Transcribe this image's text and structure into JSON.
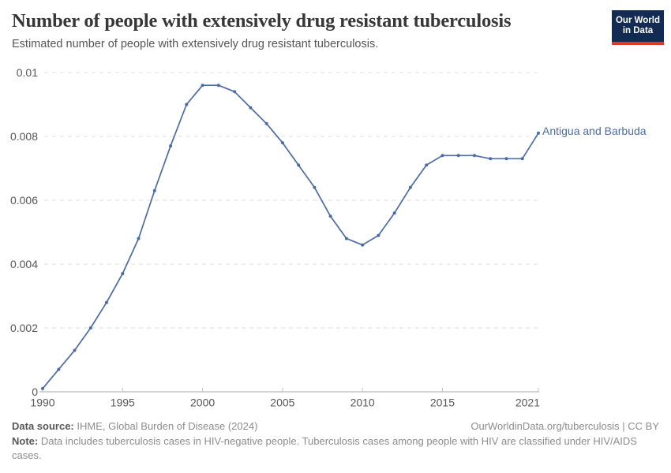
{
  "header": {
    "title": "Number of people with extensively drug resistant tuberculosis",
    "subtitle": "Estimated number of people with extensively drug resistant tuberculosis.",
    "logo": {
      "line1": "Our World",
      "line2": "in Data"
    }
  },
  "chart_data": {
    "type": "line",
    "title": "Number of people with extensively drug resistant tuberculosis",
    "xlabel": "",
    "ylabel": "",
    "xlim": [
      1990,
      2021
    ],
    "ylim": [
      0,
      0.01
    ],
    "grid": "horizontal dashed",
    "legend_position": "end-of-line label",
    "x": [
      1990,
      1991,
      1992,
      1993,
      1994,
      1995,
      1996,
      1997,
      1998,
      1999,
      2000,
      2001,
      2002,
      2003,
      2004,
      2005,
      2006,
      2007,
      2008,
      2009,
      2010,
      2011,
      2012,
      2013,
      2014,
      2015,
      2016,
      2017,
      2018,
      2019,
      2020,
      2021
    ],
    "series": [
      {
        "name": "Antigua and Barbuda",
        "color": "#4c6ba4",
        "values": [
          0.0001,
          0.0007,
          0.0013,
          0.002,
          0.0028,
          0.0037,
          0.0048,
          0.0063,
          0.0077,
          0.009,
          0.0096,
          0.0096,
          0.0094,
          0.0089,
          0.0084,
          0.0078,
          0.0071,
          0.0064,
          0.0055,
          0.0048,
          0.0046,
          0.0049,
          0.0056,
          0.0064,
          0.0071,
          0.0074,
          0.0074,
          0.0074,
          0.0073,
          0.0073,
          0.0073,
          0.0081
        ]
      }
    ],
    "x_ticks": [
      1990,
      1995,
      2000,
      2005,
      2010,
      2015,
      2021
    ],
    "y_ticks": [
      0,
      0.002,
      0.004,
      0.006,
      0.008,
      0.01
    ],
    "y_tick_labels": [
      "0",
      "0.002",
      "0.004",
      "0.006",
      "0.008",
      "0.01"
    ]
  },
  "colors": {
    "line": "#4c6ba4",
    "grid": "#dcdcdc",
    "axis": "#a8a8a8",
    "tick_mark": "#c0c0c0",
    "tick_text": "#565656",
    "logo_bg": "#132a52",
    "logo_red": "#d93a2b"
  },
  "footer": {
    "datasource_label": "Data source:",
    "datasource_text": " IHME, Global Burden of Disease (2024)",
    "link_text": "OurWorldinData.org/tuberculosis | CC BY",
    "note_label": "Note:",
    "note_text": " Data includes tuberculosis cases in HIV-negative people. Tuberculosis cases among people with HIV are classified under HIV/AIDS cases."
  }
}
